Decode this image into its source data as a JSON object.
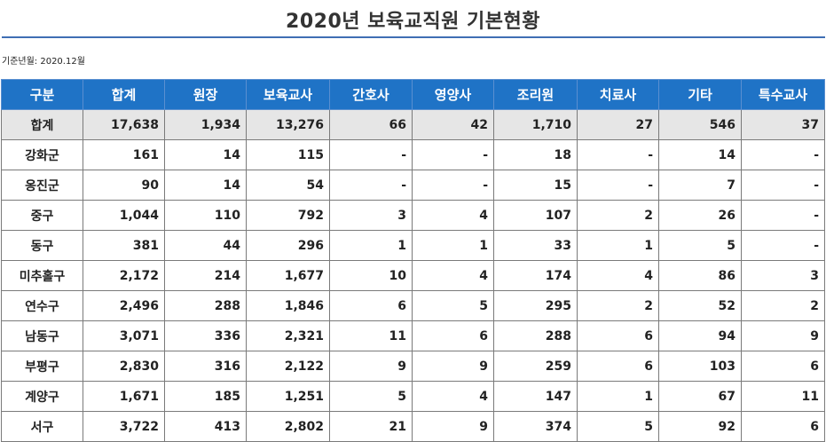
{
  "title": "2020년 보육교직원 기본현황",
  "basis": "기준년월: 2020.12월",
  "table": {
    "headers": [
      "구분",
      "합계",
      "원장",
      "보육교사",
      "간호사",
      "영양사",
      "조리원",
      "치료사",
      "기타",
      "특수교사"
    ],
    "rows": [
      [
        "합계",
        "17,638",
        "1,934",
        "13,276",
        "66",
        "42",
        "1,710",
        "27",
        "546",
        "37"
      ],
      [
        "강화군",
        "161",
        "14",
        "115",
        "-",
        "-",
        "18",
        "-",
        "14",
        "-"
      ],
      [
        "옹진군",
        "90",
        "14",
        "54",
        "-",
        "-",
        "15",
        "-",
        "7",
        "-"
      ],
      [
        "중구",
        "1,044",
        "110",
        "792",
        "3",
        "4",
        "107",
        "2",
        "26",
        "-"
      ],
      [
        "동구",
        "381",
        "44",
        "296",
        "1",
        "1",
        "33",
        "1",
        "5",
        "-"
      ],
      [
        "미추홀구",
        "2,172",
        "214",
        "1,677",
        "10",
        "4",
        "174",
        "4",
        "86",
        "3"
      ],
      [
        "연수구",
        "2,496",
        "288",
        "1,846",
        "6",
        "5",
        "295",
        "2",
        "52",
        "2"
      ],
      [
        "남동구",
        "3,071",
        "336",
        "2,321",
        "11",
        "6",
        "288",
        "6",
        "94",
        "9"
      ],
      [
        "부평구",
        "2,830",
        "316",
        "2,122",
        "9",
        "9",
        "259",
        "6",
        "103",
        "6"
      ],
      [
        "계양구",
        "1,671",
        "185",
        "1,251",
        "5",
        "4",
        "147",
        "1",
        "67",
        "11"
      ],
      [
        "서구",
        "3,722",
        "413",
        "2,802",
        "21",
        "9",
        "374",
        "5",
        "92",
        "6"
      ]
    ]
  }
}
